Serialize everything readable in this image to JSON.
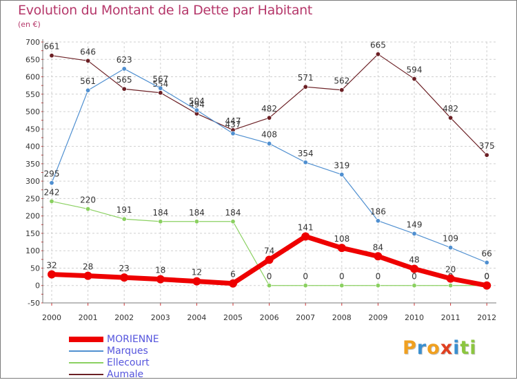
{
  "title": "Evolution du Montant de la Dette par Habitant",
  "subtitle": "(en €)",
  "logo": {
    "text": "Proxiti",
    "letters": [
      "P",
      "r",
      "o",
      "x",
      "i",
      "t",
      "i"
    ],
    "colors": [
      "#f0a020",
      "#3a8fd0",
      "#f0a020",
      "#e04020",
      "#3a8fd0",
      "#8cc63f",
      "#8cc63f"
    ]
  },
  "chart_data": {
    "type": "line",
    "x": [
      "2000",
      "2001",
      "2002",
      "2003",
      "2004",
      "2005",
      "2006",
      "2007",
      "2008",
      "2009",
      "2010",
      "2011",
      "2012"
    ],
    "ylim": [
      -50,
      700
    ],
    "yticks": [
      "-50",
      "0",
      "50",
      "100",
      "150",
      "200",
      "250",
      "300",
      "350",
      "400",
      "450",
      "500",
      "550",
      "600",
      "650",
      "700"
    ],
    "grid": true,
    "legend_position": "bottom-left",
    "series": [
      {
        "name": "Aumale",
        "color": "#6b1f24",
        "width": 1.2,
        "values": [
          661,
          646,
          565,
          554,
          494,
          447,
          482,
          571,
          562,
          665,
          594,
          482,
          375
        ],
        "labels": [
          "661",
          "646",
          "565",
          "554",
          "494",
          "447",
          "482",
          "571",
          "562",
          "665",
          "594",
          "482",
          "375"
        ]
      },
      {
        "name": "Marques",
        "color": "#4f8fd0",
        "width": 1.2,
        "values": [
          295,
          561,
          623,
          567,
          504,
          437,
          408,
          354,
          319,
          186,
          149,
          109,
          66
        ],
        "labels": [
          "295",
          "561",
          "623",
          "567",
          "504",
          "437",
          "408",
          "354",
          "319",
          "186",
          "149",
          "109",
          "66"
        ]
      },
      {
        "name": "Ellecourt",
        "color": "#8ad060",
        "width": 1.2,
        "values": [
          242,
          220,
          191,
          184,
          184,
          184,
          0,
          0,
          0,
          0,
          0,
          0,
          0
        ],
        "labels": [
          "242",
          "220",
          "191",
          "184",
          "184",
          "184",
          "0",
          "0",
          "0",
          "0",
          "0",
          "0",
          "0"
        ]
      },
      {
        "name": "MORIENNE",
        "color": "#ee0000",
        "width": 7,
        "values": [
          32,
          28,
          23,
          18,
          12,
          6,
          74,
          141,
          108,
          84,
          48,
          20,
          0
        ],
        "labels": [
          "32",
          "28",
          "23",
          "18",
          "12",
          "6",
          "74",
          "141",
          "108",
          "84",
          "48",
          "20",
          "0"
        ]
      }
    ],
    "legend_order": [
      "MORIENNE",
      "Marques",
      "Ellecourt",
      "Aumale"
    ]
  }
}
